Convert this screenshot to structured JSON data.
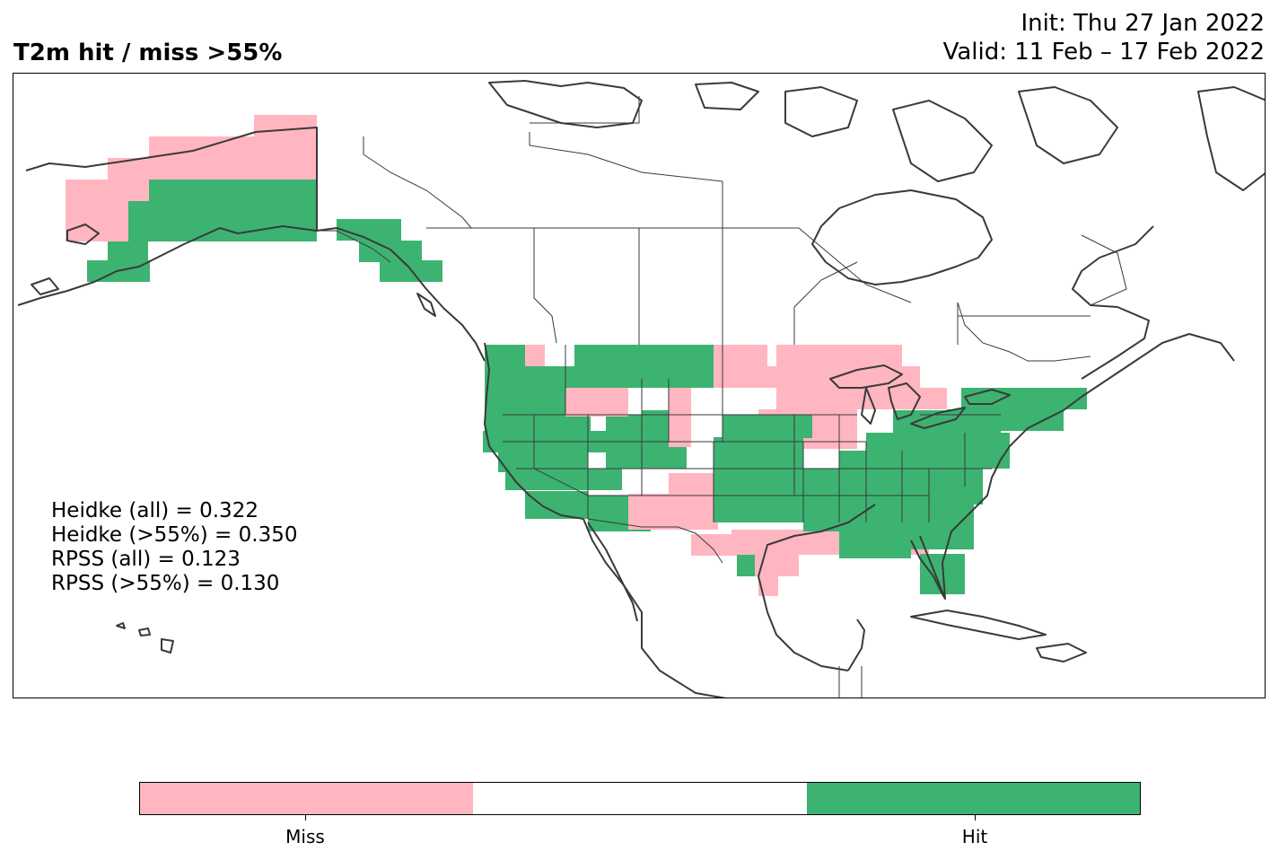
{
  "header": {
    "title": "T2m hit / miss  >55%",
    "init": "Init: Thu 27 Jan 2022",
    "valid": "Valid: 11 Feb – 17 Feb 2022"
  },
  "scores": [
    "Heidke (all) = 0.322",
    "Heidke (>55%) = 0.350",
    "RPSS (all) = 0.123",
    "RPSS (>55%) = 0.130"
  ],
  "legend": {
    "miss_label": "Miss",
    "hit_label": "Hit",
    "miss_color": "#ffb6c1",
    "neutral_color": "#ffffff",
    "hit_color": "#3cb371"
  },
  "map": {
    "region": "North America",
    "categories": [
      "Miss",
      "No forecast",
      "Hit"
    ],
    "cells_by_region": {
      "alaska_north": "Miss",
      "alaska_south": "Hit",
      "alaska_panhandle": "Hit",
      "us_west": "Hit",
      "us_northern_plains": "Miss",
      "us_upper_midwest": "Miss",
      "us_southwest_new_mexico": "Miss",
      "us_gulf_coast": "Miss",
      "us_east": "Hit",
      "us_southeast": "Hit"
    }
  }
}
